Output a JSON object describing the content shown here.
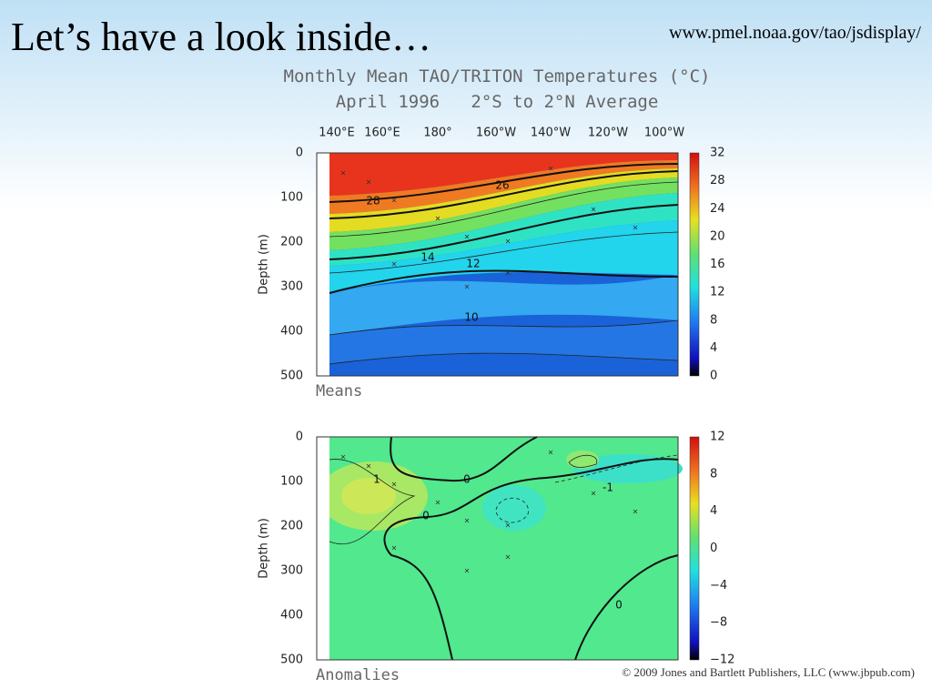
{
  "slide": {
    "title": "Let’s have a look inside…",
    "url": "www.pmel.noaa.gov/tao/jsdisplay/",
    "credit": "© 2009 Jones and Bartlett Publishers, LLC (www.jbpub.com)"
  },
  "figure": {
    "title": "Monthly Mean TAO/TRITON Temperatures (°C)",
    "subtitle": "April 1996   2°S to 2°N Average",
    "longitudes": [
      "140°E",
      "160°E",
      "180°",
      "160°W",
      "140°W",
      "120°W",
      "100°W"
    ],
    "panels": [
      {
        "label": "Means",
        "ylabel": "Depth (m)",
        "depth_ticks": [
          "0",
          "100",
          "200",
          "300",
          "400",
          "500"
        ],
        "colorbar_ticks": [
          "32",
          "28",
          "24",
          "20",
          "16",
          "12",
          "8",
          "4",
          "0"
        ],
        "contour_labels": [
          "28",
          "26",
          "14",
          "12",
          "10"
        ]
      },
      {
        "label": "Anomalies",
        "ylabel": "Depth (m)",
        "depth_ticks": [
          "0",
          "100",
          "200",
          "300",
          "400",
          "500"
        ],
        "colorbar_ticks": [
          "12",
          "8",
          "4",
          "0",
          "−4",
          "−8",
          "−12"
        ],
        "contour_labels": [
          "1",
          "0",
          "0",
          "0",
          "-1"
        ]
      }
    ]
  }
}
